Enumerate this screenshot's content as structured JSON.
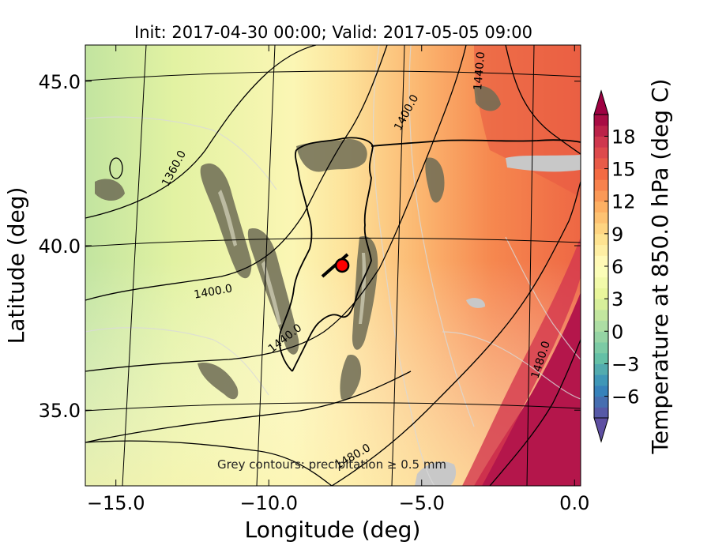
{
  "chart_data": {
    "type": "heatmap",
    "title": "Init: 2017-04-30 00:00; Valid: 2017-05-05 09:00",
    "xlabel": "Longitude (deg)",
    "ylabel": "Latitude (deg)",
    "xlim": [
      -16.0,
      0.2
    ],
    "ylim": [
      32.7,
      46.1
    ],
    "xticks": [
      -15.0,
      -10.0,
      -5.0,
      0.0
    ],
    "xtick_labels": [
      "−15.0",
      "−10.0",
      "−5.0",
      "0.0"
    ],
    "yticks": [
      35.0,
      40.0,
      45.0
    ],
    "ytick_labels": [
      "35.0",
      "40.0",
      "45.0"
    ],
    "colorbar": {
      "label": "Temperature at 850.0 hPa (deg C)",
      "range": [
        -8,
        20
      ],
      "ticks": [
        -6,
        -3,
        0,
        3,
        6,
        9,
        12,
        15,
        18
      ],
      "tick_labels": [
        "−6",
        "−3",
        "0",
        "3",
        "6",
        "9",
        "12",
        "15",
        "18"
      ],
      "extend": "both",
      "colormap": "Spectral_r"
    },
    "contour_labels": [
      {
        "text": "1360.0",
        "lon": -13.0,
        "lat": 42.3,
        "angle": -62
      },
      {
        "text": "1400.0",
        "lon": -11.8,
        "lat": 38.5,
        "angle": -10
      },
      {
        "text": "1400.0",
        "lon": -5.4,
        "lat": 44.0,
        "angle": -62
      },
      {
        "text": "1440.0",
        "lon": -3.0,
        "lat": 45.3,
        "angle": -85
      },
      {
        "text": "1440.0",
        "lon": -9.4,
        "lat": 37.1,
        "angle": -38
      },
      {
        "text": "1480.0",
        "lon": -7.2,
        "lat": 33.5,
        "angle": -30
      },
      {
        "text": "1480.0",
        "lon": -1.0,
        "lat": 36.5,
        "angle": -72
      }
    ],
    "marker": {
      "lon": -7.6,
      "lat": 39.4,
      "color": "#ff0000"
    },
    "annotation": "Grey contours: precipitation ≥ 0.5 mm"
  }
}
